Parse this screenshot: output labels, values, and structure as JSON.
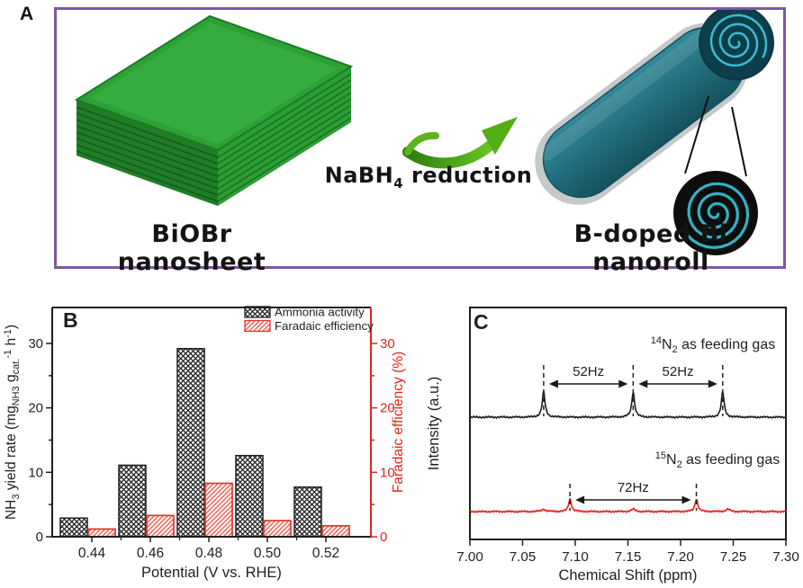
{
  "panels": {
    "a": {
      "label": "A",
      "caption_left": "BiOBr nanosheet",
      "caption_right": "B-doped Bi nanoroll",
      "arrow_caption_parts": [
        {
          "t": "NaBH"
        },
        {
          "t": "4",
          "s": "sub"
        },
        {
          "t": " reduction"
        }
      ],
      "colors": {
        "border_purple": "#7e57a4",
        "sheet_green_top": "#2da135",
        "sheet_green_side": "#1e7d26",
        "roll_teal": "#21707f",
        "roll_end_dark": "#0c3f4b",
        "spiral_cyan": "#3cbcd0",
        "arrow_green": "#53ad15"
      }
    },
    "b": {
      "label": "B"
    },
    "c": {
      "label": "C"
    }
  },
  "chart_data": [
    {
      "type": "bar",
      "panel_label": "B",
      "categories": [
        "0.44",
        "0.46",
        "0.48",
        "0.50",
        "0.52"
      ],
      "series": [
        {
          "name": "Ammonia activity",
          "axis": "left",
          "pattern": "black-crosshatch",
          "color": "#1f1f1f",
          "values": [
            2.9,
            11.1,
            29.2,
            12.6,
            7.7
          ]
        },
        {
          "name": "Faradaic efficiency",
          "axis": "right",
          "pattern": "red-diagonal-hatch",
          "color": "#e2251c",
          "values": [
            1.2,
            3.3,
            8.3,
            2.5,
            1.7
          ]
        }
      ],
      "xlabel": "Potential (V vs. RHE)",
      "ylabel_left_parts": [
        {
          "t": "NH"
        },
        {
          "t": "3",
          "s": "sub"
        },
        {
          "t": " yield rate (mg"
        },
        {
          "t": "NH3",
          "s": "sub"
        },
        {
          "t": " g"
        },
        {
          "t": "cat.",
          "s": "sub"
        },
        {
          "t": "-1",
          "s": "sup"
        },
        {
          "t": " h"
        },
        {
          "t": "-1",
          "s": "sup"
        },
        {
          "t": ")"
        }
      ],
      "ylabel_right": "Faradaic efficiency (%)",
      "yticks_left": [
        0,
        10,
        20,
        30
      ],
      "yticks_right": [
        0,
        10,
        20,
        30
      ],
      "ylim": [
        0,
        35.6
      ],
      "grid": false,
      "legend_position": "top-right",
      "axis_colors": {
        "left": "#1f1f1f",
        "right": "#e2251c"
      }
    },
    {
      "type": "line",
      "panel_label": "C",
      "xlabel": "Chemical Shift (ppm)",
      "ylabel": "Intensity (a.u.)",
      "xlim": [
        7.0,
        7.3
      ],
      "xticks": [
        "7.00",
        "7.05",
        "7.10",
        "7.15",
        "7.20",
        "7.25",
        "7.30"
      ],
      "grid": false,
      "series": [
        {
          "name_parts": [
            {
              "t": "14",
              "s": "sup"
            },
            {
              "t": "N"
            },
            {
              "t": "2",
              "s": "sub"
            },
            {
              "t": " as feeding gas"
            }
          ],
          "color": "#1f1f1f",
          "peaks_ppm": [
            7.07,
            7.155,
            7.24
          ],
          "relative_peak_height": 1.0,
          "coupling_annotations": [
            {
              "label": "52Hz",
              "from": 7.07,
              "to": 7.155
            },
            {
              "label": "52Hz",
              "from": 7.155,
              "to": 7.24
            }
          ]
        },
        {
          "name_parts": [
            {
              "t": "15",
              "s": "sup"
            },
            {
              "t": "N"
            },
            {
              "t": "2",
              "s": "sub"
            },
            {
              "t": " as feeding gas"
            }
          ],
          "color": "#e2251c",
          "peaks_ppm": [
            7.095,
            7.215
          ],
          "minor_peaks_ppm": [
            7.07,
            7.155,
            7.245
          ],
          "relative_peak_height": 0.5,
          "coupling_annotations": [
            {
              "label": "72Hz",
              "from": 7.095,
              "to": 7.215
            }
          ]
        }
      ]
    }
  ]
}
